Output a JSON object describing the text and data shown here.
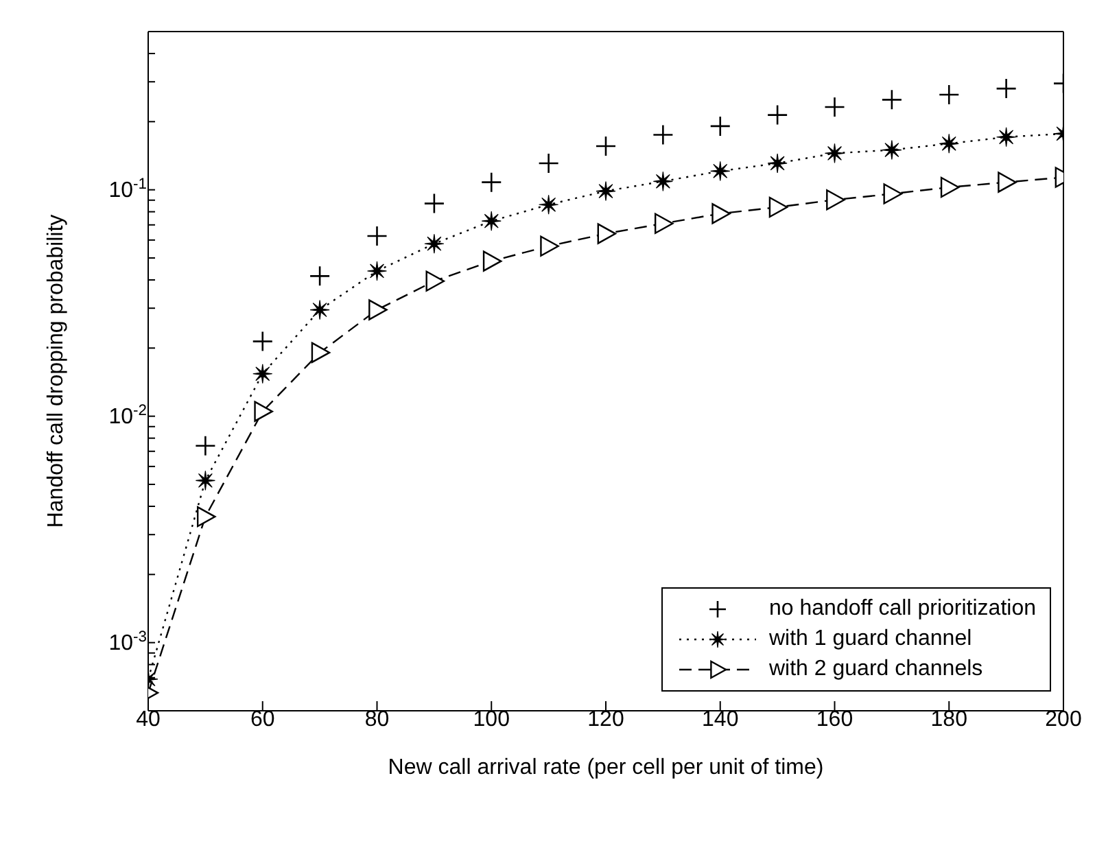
{
  "chart_data": {
    "type": "line",
    "xlabel": "New call arrival rate (per cell per unit of time)",
    "ylabel": "Handoff call dropping probability",
    "x": [
      40,
      50,
      60,
      70,
      80,
      90,
      100,
      110,
      120,
      130,
      140,
      150,
      160,
      170,
      180,
      190,
      200
    ],
    "series": [
      {
        "name": "no handoff call prioritization",
        "type": "scatter",
        "marker": "cross",
        "color": "#000000",
        "values": [
          null,
          0.0074,
          0.0214,
          0.0416,
          0.0625,
          0.087,
          0.108,
          0.131,
          0.156,
          0.175,
          0.191,
          0.214,
          0.232,
          0.25,
          0.263,
          0.28,
          0.295
        ]
      },
      {
        "name": "with 1 guard channel",
        "marker": "star",
        "line_style": "dotted",
        "color": "#000000",
        "values": [
          0.00069,
          0.0052,
          0.0154,
          0.0295,
          0.0438,
          0.0578,
          0.0728,
          0.086,
          0.0987,
          0.109,
          0.121,
          0.131,
          0.145,
          0.15,
          0.16,
          0.171,
          0.177
        ]
      },
      {
        "name": "with 2 guard channels",
        "marker": "triangle",
        "line_style": "dashed",
        "color": "#000000",
        "values": [
          0.0006,
          0.0036,
          0.0105,
          0.0191,
          0.0295,
          0.0395,
          0.0484,
          0.0564,
          0.064,
          0.071,
          0.0785,
          0.0838,
          0.0903,
          0.096,
          0.1026,
          0.108,
          0.1135
        ]
      }
    ],
    "log": "y",
    "xlim": [
      40,
      200
    ],
    "xticks": [
      40,
      60,
      80,
      100,
      120,
      140,
      160,
      180,
      200
    ],
    "ylim": [
      0.0005,
      0.5
    ],
    "yticks": [
      {
        "value": 0.0006,
        "label": null
      },
      {
        "value": 0.0007,
        "label": null
      },
      {
        "value": 0.0008,
        "label": null
      },
      {
        "value": 0.0009,
        "label": null
      },
      {
        "value": 0.001,
        "label": "10$^{-3}$"
      },
      {
        "value": 0.002,
        "label": null
      },
      {
        "value": 0.003,
        "label": null
      },
      {
        "value": 0.004,
        "label": null
      },
      {
        "value": 0.005,
        "label": null
      },
      {
        "value": 0.006,
        "label": null
      },
      {
        "value": 0.007,
        "label": null
      },
      {
        "value": 0.008,
        "label": null
      },
      {
        "value": 0.009,
        "label": null
      },
      {
        "value": 0.01,
        "label": "10$^{-2}$"
      },
      {
        "value": 0.02,
        "label": null
      },
      {
        "value": 0.03,
        "label": null
      },
      {
        "value": 0.04,
        "label": null
      },
      {
        "value": 0.05,
        "label": null
      },
      {
        "value": 0.06,
        "label": null
      },
      {
        "value": 0.07,
        "label": null
      },
      {
        "value": 0.08,
        "label": null
      },
      {
        "value": 0.09,
        "label": null
      },
      {
        "value": 0.1,
        "label": "10$^{-1}$"
      },
      {
        "value": 0.2,
        "label": null
      },
      {
        "value": 0.3,
        "label": null
      },
      {
        "value": 0.4,
        "label": null
      }
    ],
    "grid": false,
    "legend": "bottom right"
  }
}
